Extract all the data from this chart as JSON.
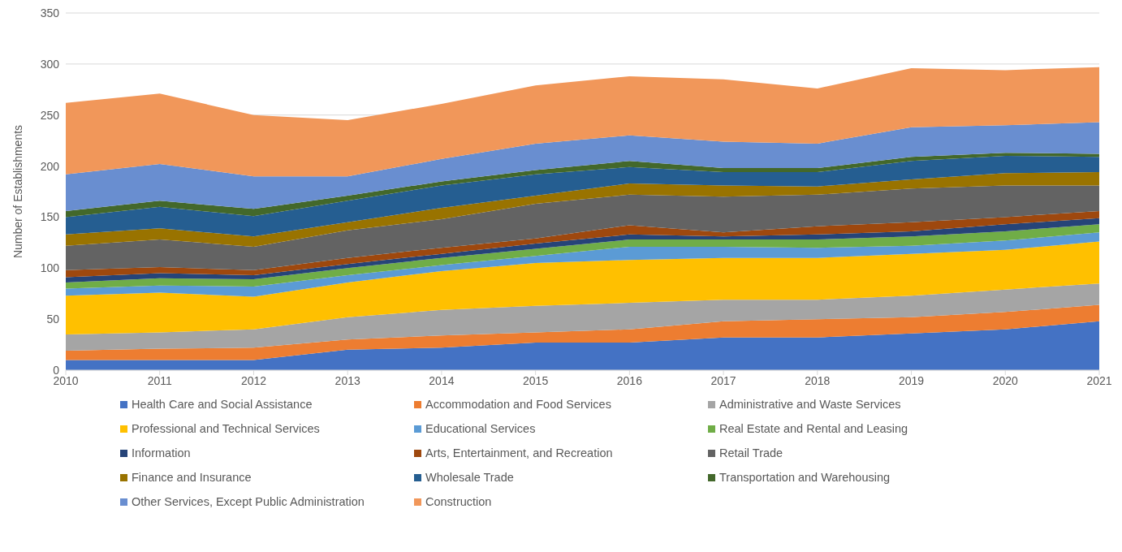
{
  "chart_data": {
    "type": "area",
    "stacked": true,
    "ylabel": "Number of Establishments",
    "x": [
      2010,
      2011,
      2012,
      2013,
      2014,
      2015,
      2016,
      2017,
      2018,
      2019,
      2020,
      2021
    ],
    "xlim": [
      2010,
      2021
    ],
    "xticks": [
      2010,
      2011,
      2012,
      2013,
      2014,
      2015,
      2016,
      2017,
      2018,
      2019,
      2020,
      2021
    ],
    "ylim": [
      0,
      350
    ],
    "yticks": [
      0,
      50,
      100,
      150,
      200,
      250,
      300,
      350
    ],
    "grid": "y",
    "legend": "bottom",
    "series": [
      {
        "name": "Health Care and Social Assistance",
        "color": "#4472c4",
        "values": [
          10,
          10,
          10,
          20,
          22,
          27,
          27,
          32,
          32,
          36,
          40,
          48
        ]
      },
      {
        "name": "Accommodation and Food Services",
        "color": "#ed7d31",
        "values": [
          9,
          11,
          12,
          10,
          12,
          10,
          13,
          16,
          18,
          16,
          17,
          16
        ]
      },
      {
        "name": "Administrative and Waste Services",
        "color": "#a5a5a5",
        "values": [
          16,
          16,
          18,
          22,
          25,
          26,
          26,
          21,
          19,
          21,
          22,
          21
        ]
      },
      {
        "name": "Professional and Technical Services",
        "color": "#ffc000",
        "values": [
          38,
          39,
          32,
          34,
          38,
          42,
          42,
          41,
          41,
          41,
          39,
          41
        ]
      },
      {
        "name": "Educational Services",
        "color": "#5b9bd5",
        "values": [
          7,
          7,
          10,
          7,
          6,
          7,
          13,
          11,
          10,
          8,
          9,
          9
        ]
      },
      {
        "name": "Real Estate and Rental and Leasing",
        "color": "#70ad47",
        "values": [
          6,
          7,
          7,
          7,
          7,
          7,
          7,
          7,
          8,
          9,
          9,
          8
        ]
      },
      {
        "name": "Information",
        "color": "#264478",
        "values": [
          5,
          5,
          4,
          4,
          4,
          5,
          5,
          3,
          5,
          5,
          7,
          6
        ]
      },
      {
        "name": "Arts, Entertainment, and Recreation",
        "color": "#9e480e",
        "values": [
          7,
          6,
          5,
          6,
          6,
          5,
          9,
          4,
          8,
          9,
          7,
          7
        ]
      },
      {
        "name": "Retail Trade",
        "color": "#636363",
        "values": [
          24,
          27,
          23,
          27,
          28,
          34,
          30,
          35,
          31,
          33,
          31,
          25
        ]
      },
      {
        "name": "Finance and Insurance",
        "color": "#997300",
        "values": [
          11,
          11,
          10,
          8,
          11,
          8,
          11,
          11,
          8,
          9,
          12,
          13
        ]
      },
      {
        "name": "Wholesale Trade",
        "color": "#255e91",
        "values": [
          17,
          21,
          20,
          21,
          22,
          21,
          16,
          13,
          14,
          18,
          17,
          15
        ]
      },
      {
        "name": "Transportation and Warehousing",
        "color": "#43682b",
        "values": [
          6,
          6,
          7,
          5,
          4,
          4,
          6,
          4,
          4,
          4,
          3,
          3
        ]
      },
      {
        "name": "Other Services, Except Public Administration",
        "color": "#698ed0",
        "values": [
          36,
          36,
          32,
          19,
          22,
          26,
          25,
          26,
          24,
          29,
          27,
          31
        ]
      },
      {
        "name": "Construction",
        "color": "#f1975a",
        "values": [
          70,
          69,
          60,
          55,
          54,
          57,
          58,
          61,
          54,
          58,
          54,
          54
        ]
      }
    ]
  }
}
